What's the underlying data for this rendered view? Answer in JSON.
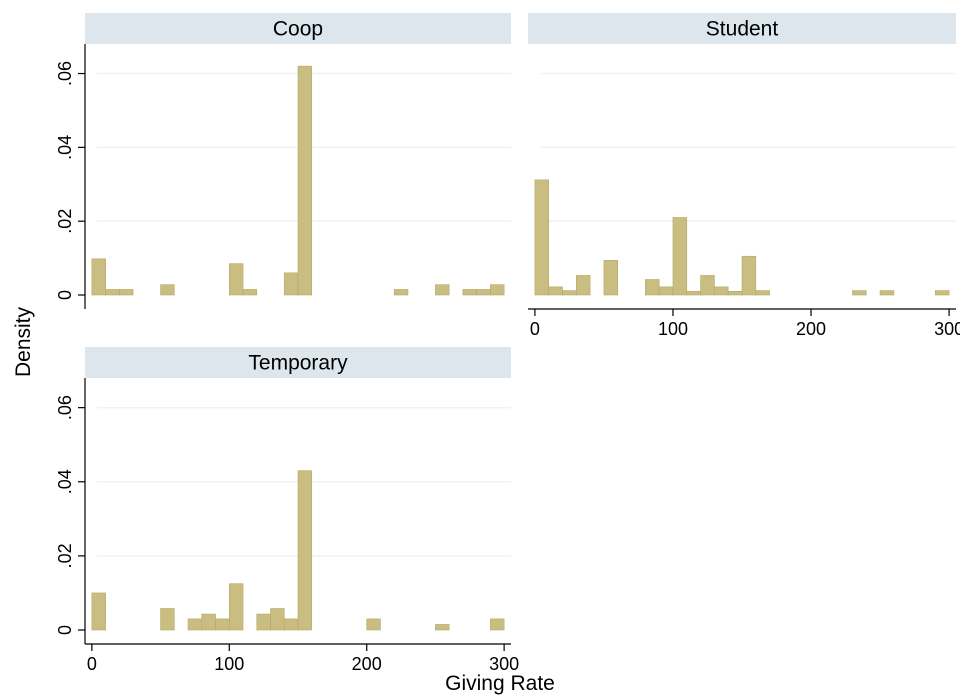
{
  "chart_data": {
    "type": "bar",
    "bin_width": 10,
    "xlabel": "Giving Rate",
    "ylabel": "Density",
    "xlim": [
      -5,
      305
    ],
    "ylim": [
      0,
      0.068
    ],
    "x_ticks": [
      0,
      100,
      200,
      300
    ],
    "x_tick_labels": [
      "0",
      "100",
      "200",
      "300"
    ],
    "y_ticks": [
      0,
      0.02,
      0.04,
      0.06
    ],
    "y_tick_labels": [
      "0",
      ".02",
      ".04",
      ".06"
    ],
    "grid": true,
    "colors": {
      "bar_fill": "#c9bd82",
      "bar_edge": "#b5a964",
      "title_strip": "#dce6ec",
      "grid": "#eef2f4",
      "axis": "#000000"
    },
    "panels": [
      {
        "title": "Coop",
        "x": [
          5,
          15,
          25,
          55,
          105,
          115,
          145,
          155,
          225,
          255,
          275,
          285,
          295
        ],
        "values": [
          0.0098,
          0.0015,
          0.0015,
          0.0028,
          0.0085,
          0.0015,
          0.006,
          0.062,
          0.0015,
          0.0028,
          0.0015,
          0.0015,
          0.0028
        ]
      },
      {
        "title": "Student",
        "x": [
          5,
          15,
          25,
          35,
          55,
          85,
          95,
          105,
          115,
          125,
          135,
          145,
          155,
          165,
          235,
          255,
          295
        ],
        "values": [
          0.0312,
          0.0022,
          0.0012,
          0.0053,
          0.0094,
          0.0042,
          0.0022,
          0.021,
          0.001,
          0.0053,
          0.0022,
          0.001,
          0.0105,
          0.0012,
          0.0012,
          0.0012,
          0.0012
        ]
      },
      {
        "title": "Temporary",
        "x": [
          5,
          55,
          75,
          85,
          95,
          105,
          125,
          135,
          145,
          155,
          205,
          255,
          295
        ],
        "values": [
          0.01,
          0.0058,
          0.003,
          0.0043,
          0.003,
          0.0125,
          0.0043,
          0.0058,
          0.003,
          0.043,
          0.003,
          0.0015,
          0.003
        ]
      }
    ]
  }
}
